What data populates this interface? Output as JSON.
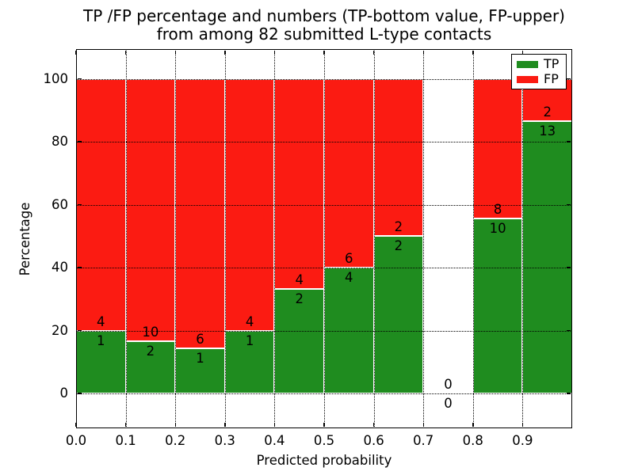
{
  "chart_data": {
    "type": "bar",
    "stacked": true,
    "title_line1": "TP /FP percentage and numbers (TP-bottom value, FP-upper)",
    "title_line2": "from among 82 submitted L-type contacts",
    "xlabel": "Predicted probability",
    "ylabel": "Percentage",
    "x_tick_labels": [
      "0.0",
      "0.1",
      "0.2",
      "0.3",
      "0.4",
      "0.5",
      "0.6",
      "0.7",
      "0.8",
      "0.9"
    ],
    "y_ticks": [
      0,
      20,
      40,
      60,
      80,
      100
    ],
    "xlim": [
      0.0,
      1.0
    ],
    "ylim_percent": [
      0,
      100
    ],
    "bin_width": 0.1,
    "grid": "dotted",
    "bars_normalized_to": 100,
    "legend": {
      "position": "upper right",
      "entries": [
        {
          "label": "TP",
          "color": "#1f8c1f"
        },
        {
          "label": "FP",
          "color": "#fb1b12"
        }
      ]
    },
    "series": [
      {
        "name": "TP",
        "color": "#1f8c1f",
        "values": [
          1,
          2,
          1,
          1,
          2,
          4,
          2,
          0,
          10,
          13
        ]
      },
      {
        "name": "FP",
        "color": "#fb1b12",
        "values": [
          4,
          10,
          6,
          4,
          4,
          6,
          2,
          0,
          8,
          2
        ]
      }
    ],
    "tp_percent_by_bin": [
      20.0,
      16.7,
      14.3,
      20.0,
      33.3,
      40.0,
      50.0,
      null,
      55.6,
      86.7
    ],
    "colors": {
      "tp": "#1f8c1f",
      "fp": "#fb1b12",
      "text": "#000000",
      "background": "#ffffff"
    }
  }
}
